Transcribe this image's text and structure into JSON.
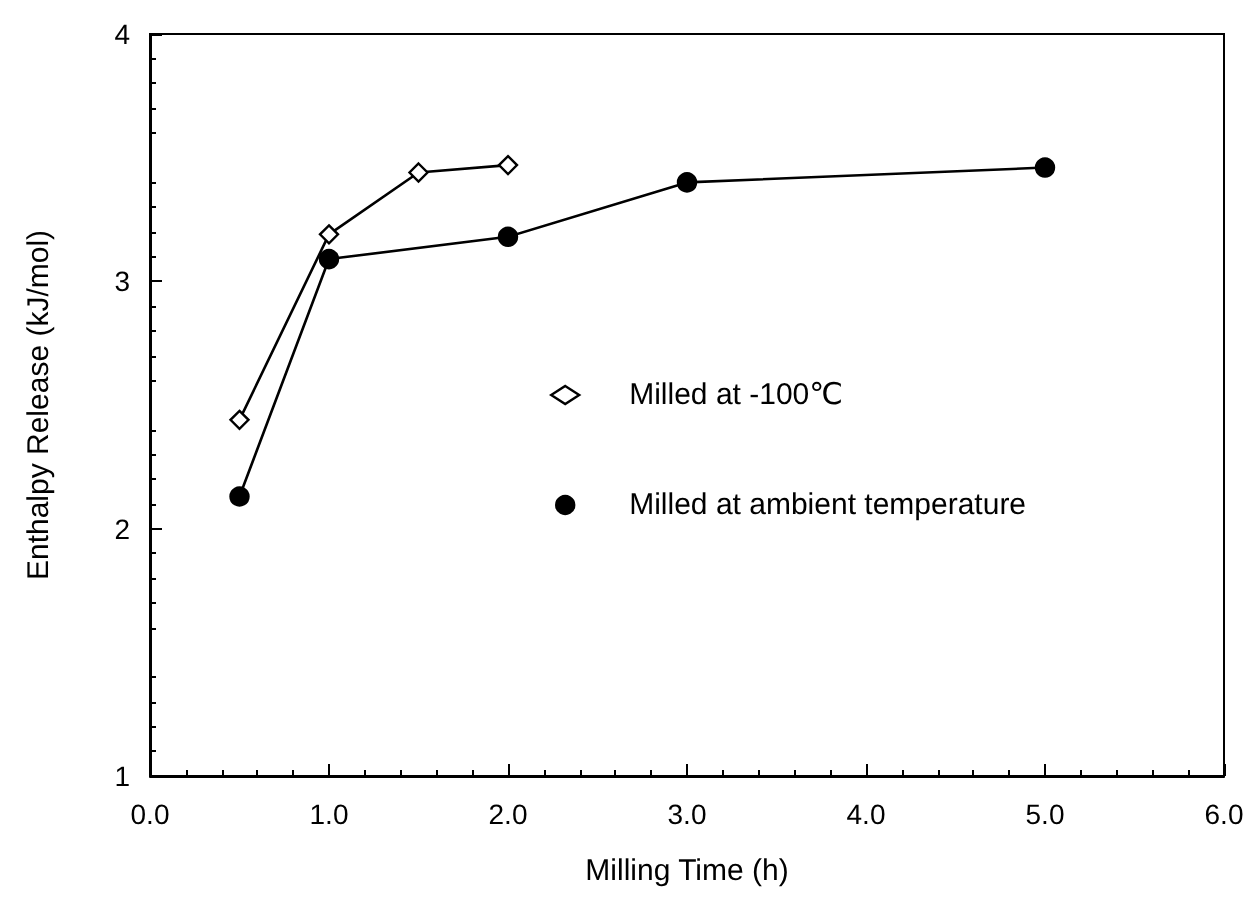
{
  "chart_data": {
    "type": "line",
    "xlabel": "Milling Time (h)",
    "ylabel": "Enthalpy Release (kJ/mol)",
    "xlim": [
      0,
      6
    ],
    "ylim": [
      1,
      4
    ],
    "xticks": [
      {
        "value": 0,
        "label": "0.0"
      },
      {
        "value": 1,
        "label": "1.0"
      },
      {
        "value": 2,
        "label": "2.0"
      },
      {
        "value": 3,
        "label": "3.0"
      },
      {
        "value": 4,
        "label": "4.0"
      },
      {
        "value": 5,
        "label": "5.0"
      },
      {
        "value": 6,
        "label": "6.0"
      }
    ],
    "yticks": [
      1,
      2,
      3,
      4
    ],
    "grid": false,
    "legend": "right",
    "series": [
      {
        "name": "Milled at -100℃",
        "color": "#000000",
        "marker": "diamond",
        "x": [
          0.5,
          1.0,
          1.5,
          2.0
        ],
        "values": [
          2.44,
          3.19,
          3.44,
          3.47
        ]
      },
      {
        "name": "Milled at ambient temperature",
        "color": "#000000",
        "marker": "circle",
        "x": [
          0.5,
          1.0,
          2.0,
          3.0,
          5.0
        ],
        "values": [
          2.13,
          3.09,
          3.18,
          3.4,
          3.46
        ]
      }
    ]
  }
}
